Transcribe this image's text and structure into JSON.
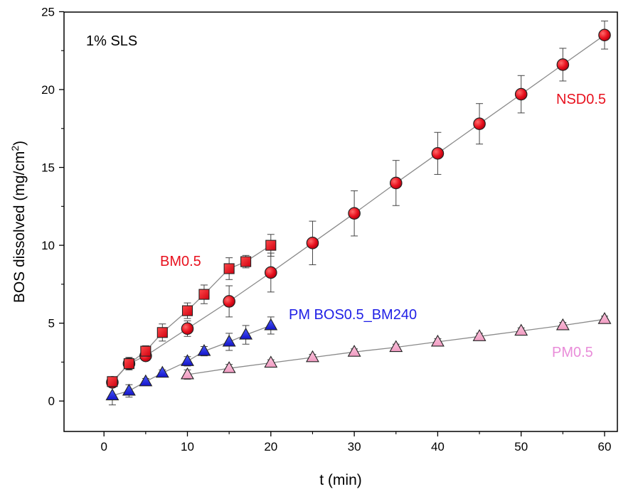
{
  "chart_data": {
    "type": "scatter",
    "title": "",
    "xlabel": "t (min)",
    "ylabel_main": "BOS dissolved (mg/cm",
    "ylabel_sup": "2",
    "ylabel_close": ")",
    "xlim": [
      -5,
      65
    ],
    "ylim": [
      -2,
      25
    ],
    "xticks": [
      0,
      10,
      20,
      30,
      40,
      50,
      60
    ],
    "yticks": [
      0,
      5,
      10,
      15,
      20,
      25
    ],
    "grid": false,
    "annotation": "1% SLS",
    "series": [
      {
        "name": "NSD0.5",
        "marker": "circle",
        "color": "#e8111e",
        "label_color": "#e8111e",
        "x": [
          1,
          3,
          5,
          10,
          15,
          20,
          25,
          30,
          35,
          40,
          45,
          50,
          55,
          60
        ],
        "y": [
          1.2,
          2.4,
          2.9,
          4.65,
          6.4,
          8.25,
          10.15,
          12.05,
          14.0,
          15.9,
          17.8,
          19.7,
          21.6,
          23.5
        ],
        "err": [
          0.3,
          0.4,
          0.3,
          0.5,
          1.0,
          1.25,
          1.4,
          1.45,
          1.45,
          1.35,
          1.3,
          1.2,
          1.05,
          0.9
        ]
      },
      {
        "name": "BM0.5",
        "marker": "square",
        "color": "#e8111e",
        "label_color": "#e8111e",
        "x": [
          1,
          3,
          5,
          7,
          10,
          12,
          15,
          17,
          20
        ],
        "y": [
          1.25,
          2.4,
          3.2,
          4.4,
          5.8,
          6.85,
          8.5,
          8.95,
          10.0
        ],
        "err": [
          0.25,
          0.35,
          0.35,
          0.55,
          0.5,
          0.6,
          0.7,
          0.4,
          0.7
        ]
      },
      {
        "name": "PM BOS0.5_BM240",
        "marker": "triangle",
        "color": "#1f1fe6",
        "label_color": "#1f1fe6",
        "x": [
          1,
          3,
          5,
          7,
          10,
          12,
          15,
          17,
          20
        ],
        "y": [
          0.35,
          0.65,
          1.25,
          1.8,
          2.55,
          3.2,
          3.8,
          4.25,
          4.85
        ],
        "err": [
          0.6,
          0.4,
          0.2,
          0.2,
          0.3,
          0.3,
          0.55,
          0.6,
          0.55
        ]
      },
      {
        "name": "PM0.5",
        "marker": "triangle",
        "color": "#f5a3c8",
        "label_color": "#e98cd9",
        "x": [
          10,
          15,
          20,
          25,
          30,
          35,
          40,
          45,
          50,
          55,
          60
        ],
        "y": [
          1.7,
          2.1,
          2.45,
          2.8,
          3.15,
          3.45,
          3.8,
          4.15,
          4.5,
          4.85,
          5.25
        ],
        "err": [
          0.3,
          0.25,
          0.2,
          0.2,
          0.2,
          0.2,
          0.2,
          0.2,
          0.2,
          0.2,
          0.2
        ]
      }
    ]
  }
}
